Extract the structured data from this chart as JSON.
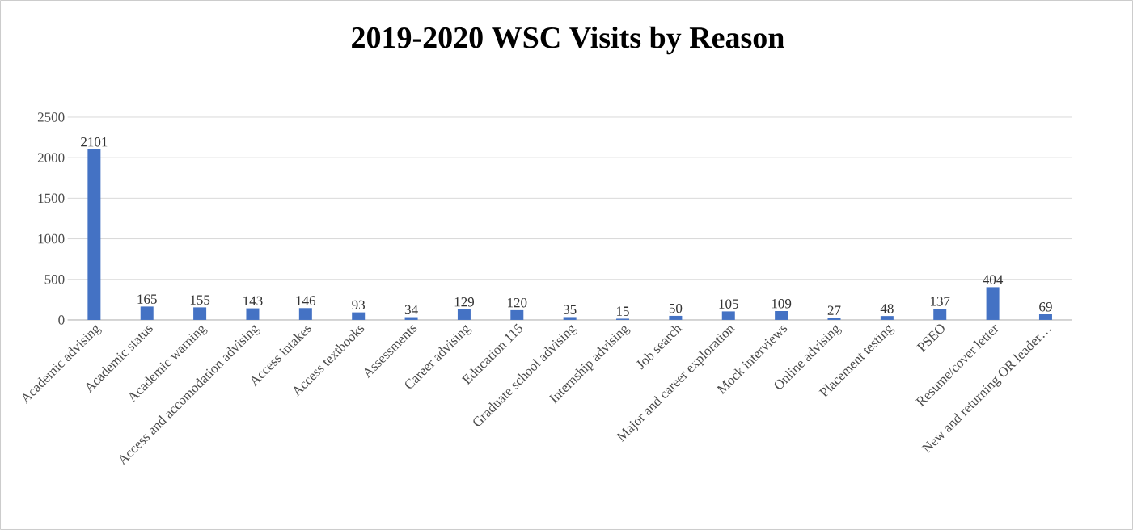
{
  "chart_data": {
    "type": "bar",
    "title": "2019-2020 WSC Visits by Reason",
    "categories": [
      "Academic advising",
      "Academic status",
      "Academic warning",
      "Access and accomodation advising",
      "Access intakes",
      "Access textbooks",
      "Assessments",
      "Career advising",
      "Education 115",
      "Graduate school advising",
      "Internship advising",
      "Job search",
      "Major and career exploration",
      "Mock interviews",
      "Online advising",
      "Placement testing",
      "PSEO",
      "Resume/cover letter",
      "New and returning OR leader…"
    ],
    "values": [
      2101,
      165,
      155,
      143,
      146,
      93,
      34,
      129,
      120,
      35,
      15,
      50,
      105,
      109,
      27,
      48,
      137,
      404,
      69
    ],
    "color": "#4472c4",
    "ylim": [
      0,
      2500
    ],
    "yticks": [
      0,
      500,
      1000,
      1500,
      2000,
      2500
    ],
    "grid": "y",
    "data_labels": true
  }
}
